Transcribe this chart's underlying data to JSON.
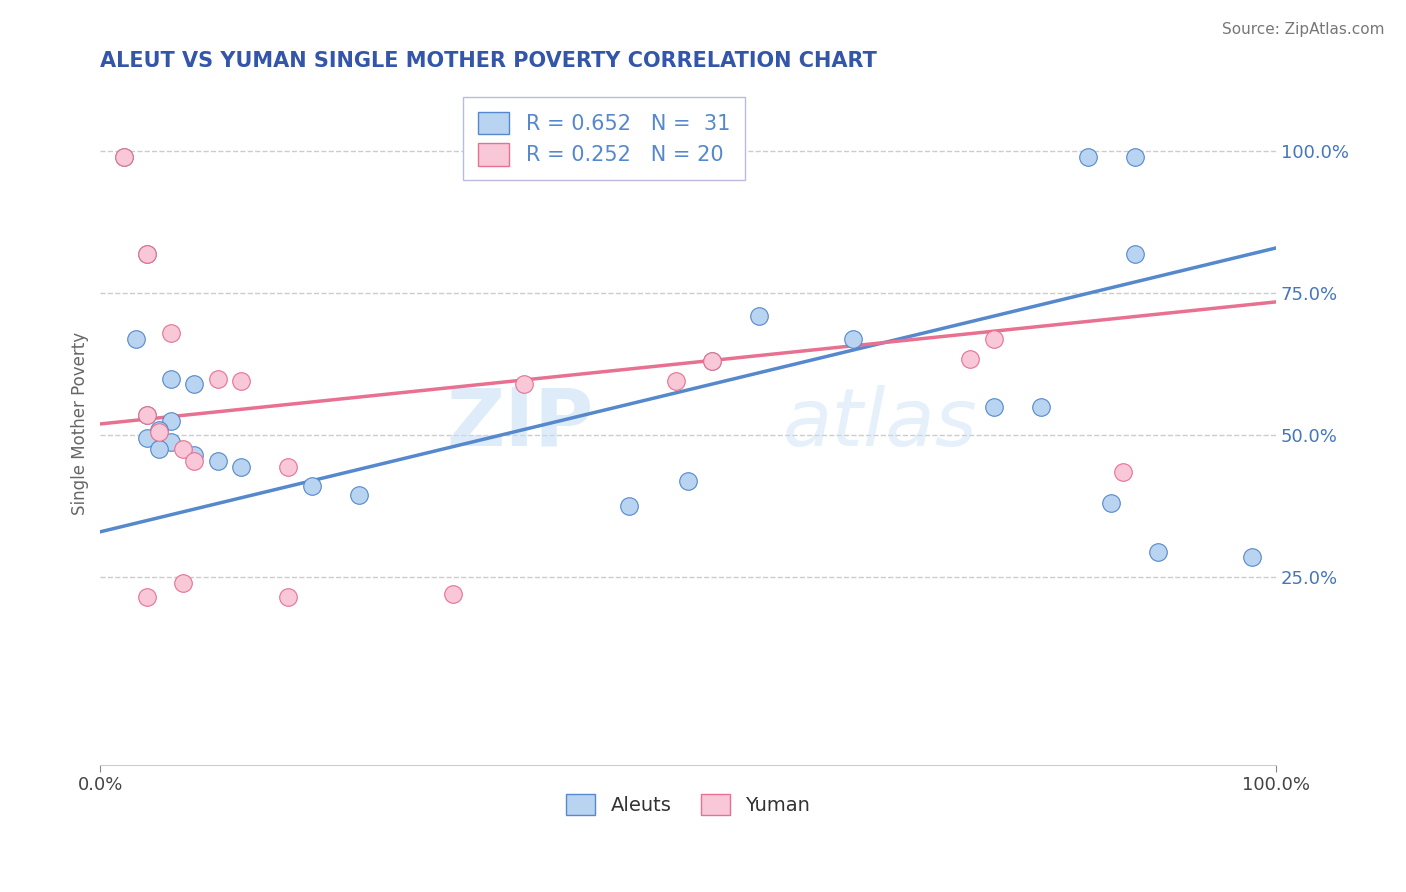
{
  "title": "ALEUT VS YUMAN SINGLE MOTHER POVERTY CORRELATION CHART",
  "source": "Source: ZipAtlas.com",
  "xlabel": "",
  "ylabel": "Single Mother Poverty",
  "xlim": [
    0.0,
    1.0
  ],
  "ylim": [
    -0.08,
    1.12
  ],
  "xtick_positions": [
    0.0,
    1.0
  ],
  "xtick_labels": [
    "0.0%",
    "100.0%"
  ],
  "ytick_positions": [
    0.25,
    0.5,
    0.75,
    1.0
  ],
  "ytick_labels": [
    "25.0%",
    "50.0%",
    "75.0%",
    "100.0%"
  ],
  "background_color": "#ffffff",
  "watermark_zip": "ZIP",
  "watermark_atlas": "atlas",
  "legend_line1": "R = 0.652   N =  31",
  "legend_line2": "R = 0.252   N = 20",
  "aleuts_color": "#b8d4f0",
  "yuman_color": "#f8c8d8",
  "aleuts_edge_color": "#5588cc",
  "yuman_edge_color": "#e87090",
  "aleuts_line_color": "#5588cc",
  "yuman_line_color": "#e87090",
  "title_color": "#3355aa",
  "right_tick_color": "#4477bb",
  "source_color": "#777777",
  "aleuts_scatter": [
    [
      0.02,
      0.99
    ],
    [
      0.35,
      0.99
    ],
    [
      0.39,
      0.99
    ],
    [
      0.84,
      0.99
    ],
    [
      0.88,
      0.99
    ],
    [
      0.04,
      0.82
    ],
    [
      0.03,
      0.67
    ],
    [
      0.06,
      0.6
    ],
    [
      0.08,
      0.59
    ],
    [
      0.04,
      0.535
    ],
    [
      0.06,
      0.525
    ],
    [
      0.05,
      0.51
    ],
    [
      0.04,
      0.495
    ],
    [
      0.06,
      0.488
    ],
    [
      0.05,
      0.475
    ],
    [
      0.08,
      0.465
    ],
    [
      0.1,
      0.455
    ],
    [
      0.12,
      0.445
    ],
    [
      0.18,
      0.41
    ],
    [
      0.22,
      0.395
    ],
    [
      0.45,
      0.375
    ],
    [
      0.5,
      0.42
    ],
    [
      0.52,
      0.63
    ],
    [
      0.56,
      0.71
    ],
    [
      0.64,
      0.67
    ],
    [
      0.76,
      0.55
    ],
    [
      0.8,
      0.55
    ],
    [
      0.86,
      0.38
    ],
    [
      0.88,
      0.82
    ],
    [
      0.9,
      0.295
    ],
    [
      0.98,
      0.285
    ]
  ],
  "yuman_scatter": [
    [
      0.02,
      0.99
    ],
    [
      0.04,
      0.82
    ],
    [
      0.06,
      0.68
    ],
    [
      0.1,
      0.6
    ],
    [
      0.12,
      0.595
    ],
    [
      0.04,
      0.535
    ],
    [
      0.05,
      0.505
    ],
    [
      0.07,
      0.475
    ],
    [
      0.08,
      0.455
    ],
    [
      0.16,
      0.445
    ],
    [
      0.36,
      0.59
    ],
    [
      0.49,
      0.595
    ],
    [
      0.52,
      0.63
    ],
    [
      0.74,
      0.635
    ],
    [
      0.76,
      0.67
    ],
    [
      0.87,
      0.435
    ],
    [
      0.3,
      0.22
    ],
    [
      0.16,
      0.215
    ],
    [
      0.07,
      0.24
    ],
    [
      0.04,
      0.215
    ]
  ],
  "aleuts_trendline_x": [
    0.0,
    1.0
  ],
  "aleuts_trendline_y": [
    0.33,
    0.83
  ],
  "yuman_trendline_x": [
    0.0,
    1.0
  ],
  "yuman_trendline_y": [
    0.52,
    0.735
  ]
}
